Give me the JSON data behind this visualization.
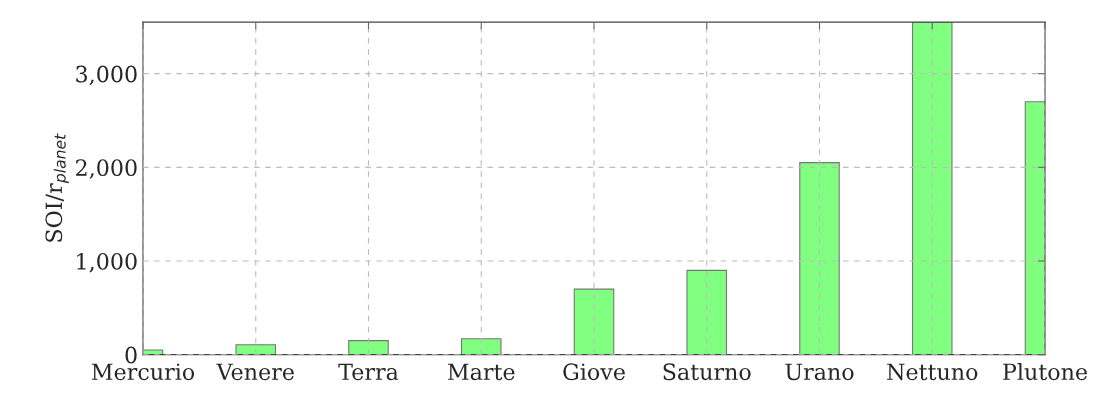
{
  "chart_data": {
    "type": "bar",
    "ylabel": "SOI/r$_{planet}$",
    "categories": [
      "Mercurio",
      "Venere",
      "Terra",
      "Marte",
      "Giove",
      "Saturno",
      "Urano",
      "Nettuno",
      "Plutone"
    ],
    "values": [
      50,
      105,
      150,
      170,
      700,
      900,
      2050,
      3550,
      2700
    ],
    "color": "#80ff80",
    "ylim": [
      0,
      3550
    ],
    "yticks": [
      0,
      {
        "value": 1000,
        "label": "1,000"
      },
      {
        "value": 2000,
        "label": "2,000"
      },
      {
        "value": 3000,
        "label": "3,000"
      }
    ],
    "grid": true
  }
}
